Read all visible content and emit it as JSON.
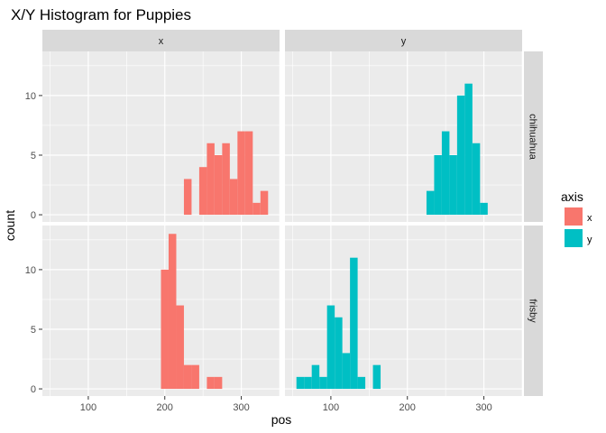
{
  "chart_data": {
    "type": "bar",
    "title": "X/Y Histogram for Puppies",
    "xlabel": "pos",
    "ylabel": "count",
    "xlim": [
      40,
      350
    ],
    "ylim": [
      -0.6,
      13.7
    ],
    "bin_width": 10,
    "x_ticks": [
      100,
      200,
      300
    ],
    "y_ticks": [
      0,
      5,
      10
    ],
    "grid": true,
    "legend_placement": "right",
    "legend": {
      "title": "axis",
      "entries": [
        {
          "label": "x",
          "color": "#F8766D"
        },
        {
          "label": "y",
          "color": "#00BFC4"
        }
      ]
    },
    "facet_columns": [
      "x",
      "y"
    ],
    "facet_rows": [
      "chihuahua",
      "frisby"
    ],
    "panels": [
      {
        "row": "chihuahua",
        "col": "x",
        "series": "x",
        "color": "#F8766D",
        "bins": [
          {
            "x0": 225,
            "x1": 235,
            "count": 3
          },
          {
            "x0": 245,
            "x1": 255,
            "count": 4
          },
          {
            "x0": 255,
            "x1": 265,
            "count": 6
          },
          {
            "x0": 265,
            "x1": 275,
            "count": 5
          },
          {
            "x0": 275,
            "x1": 285,
            "count": 6
          },
          {
            "x0": 285,
            "x1": 295,
            "count": 3
          },
          {
            "x0": 295,
            "x1": 305,
            "count": 7
          },
          {
            "x0": 305,
            "x1": 315,
            "count": 7
          },
          {
            "x0": 315,
            "x1": 325,
            "count": 1
          },
          {
            "x0": 325,
            "x1": 335,
            "count": 2
          }
        ]
      },
      {
        "row": "chihuahua",
        "col": "y",
        "series": "y",
        "color": "#00BFC4",
        "bins": [
          {
            "x0": 225,
            "x1": 235,
            "count": 2
          },
          {
            "x0": 235,
            "x1": 245,
            "count": 5
          },
          {
            "x0": 245,
            "x1": 255,
            "count": 7
          },
          {
            "x0": 255,
            "x1": 265,
            "count": 5
          },
          {
            "x0": 265,
            "x1": 275,
            "count": 10
          },
          {
            "x0": 275,
            "x1": 285,
            "count": 11
          },
          {
            "x0": 285,
            "x1": 295,
            "count": 6
          },
          {
            "x0": 295,
            "x1": 305,
            "count": 1
          }
        ]
      },
      {
        "row": "frisby",
        "col": "x",
        "series": "x",
        "color": "#F8766D",
        "bins": [
          {
            "x0": 195,
            "x1": 205,
            "count": 10
          },
          {
            "x0": 205,
            "x1": 215,
            "count": 13
          },
          {
            "x0": 215,
            "x1": 225,
            "count": 7
          },
          {
            "x0": 225,
            "x1": 235,
            "count": 2
          },
          {
            "x0": 235,
            "x1": 245,
            "count": 2
          },
          {
            "x0": 255,
            "x1": 265,
            "count": 1
          },
          {
            "x0": 265,
            "x1": 275,
            "count": 1
          }
        ]
      },
      {
        "row": "frisby",
        "col": "y",
        "series": "y",
        "color": "#00BFC4",
        "bins": [
          {
            "x0": 55,
            "x1": 65,
            "count": 1
          },
          {
            "x0": 65,
            "x1": 75,
            "count": 1
          },
          {
            "x0": 75,
            "x1": 85,
            "count": 2
          },
          {
            "x0": 85,
            "x1": 95,
            "count": 1
          },
          {
            "x0": 95,
            "x1": 105,
            "count": 7
          },
          {
            "x0": 105,
            "x1": 115,
            "count": 6
          },
          {
            "x0": 115,
            "x1": 125,
            "count": 3
          },
          {
            "x0": 125,
            "x1": 135,
            "count": 11
          },
          {
            "x0": 135,
            "x1": 145,
            "count": 1
          },
          {
            "x0": 155,
            "x1": 165,
            "count": 2
          }
        ]
      }
    ]
  }
}
